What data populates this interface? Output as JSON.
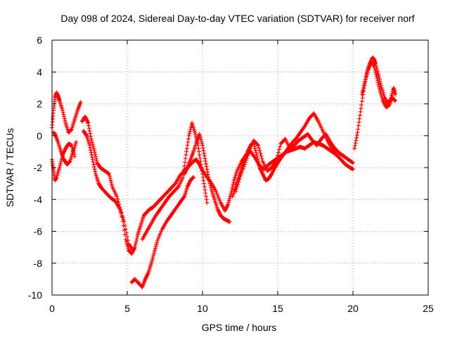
{
  "chart_data": {
    "type": "scatter",
    "title": "Day 098 of 2024, Sidereal Day-to-day VTEC variation (SDTVAR) for receiver norf",
    "xlabel": "GPS time / hours",
    "ylabel": "SDTVAR / TECUs",
    "xlim": [
      0,
      25
    ],
    "ylim": [
      -10,
      6
    ],
    "xticks": [
      "0",
      "5",
      "10",
      "15",
      "20",
      "25"
    ],
    "yticks": [
      "-10",
      "-8",
      "-6",
      "-4",
      "-2",
      "0",
      "2",
      "4",
      "6"
    ],
    "grid": true,
    "marker": "plus",
    "color": "#ff0000",
    "series": [
      {
        "x": [
          0.0,
          0.1,
          0.2,
          0.3,
          0.4,
          0.5,
          0.7,
          0.9,
          1.1,
          1.3,
          1.5,
          1.7,
          1.9
        ],
        "y": [
          0.5,
          1.6,
          2.4,
          2.7,
          2.5,
          2.2,
          1.6,
          0.8,
          0.2,
          0.4,
          1.0,
          1.6,
          2.1
        ]
      },
      {
        "x": [
          0.0,
          0.1,
          0.2,
          0.3,
          0.5,
          0.7,
          0.9,
          1.1,
          1.3,
          1.5
        ],
        "y": [
          -1.5,
          -2.2,
          -2.8,
          -2.6,
          -2.0,
          -1.2,
          -0.8,
          -0.5,
          -0.6,
          -1.3
        ]
      },
      {
        "x": [
          0.1,
          0.2,
          0.4,
          0.6,
          0.8,
          1.0,
          1.2,
          1.4,
          1.6
        ],
        "y": [
          0.2,
          0.1,
          -0.4,
          -1.0,
          -1.5,
          -1.8,
          -1.6,
          -1.0,
          -0.4
        ]
      },
      {
        "x": [
          2.0,
          2.2,
          2.4,
          2.6,
          2.8,
          3.0,
          3.2,
          3.5,
          3.8,
          4.0,
          4.3,
          4.6,
          4.9,
          5.1,
          5.3,
          5.5,
          5.7,
          5.9,
          6.1,
          6.3,
          6.5,
          6.7,
          6.9,
          7.1,
          7.3,
          7.6,
          7.9,
          8.2,
          8.5,
          8.8,
          9.0,
          9.2,
          9.4,
          9.6,
          9.8,
          10.0,
          10.3,
          10.6,
          10.9,
          11.2,
          11.5,
          11.7,
          11.9,
          12.1,
          12.3,
          12.6,
          12.9,
          13.2,
          13.5,
          13.8,
          14.1,
          14.4,
          14.7,
          15.0,
          15.3,
          15.6,
          15.9,
          16.2,
          16.5,
          16.8,
          17.1,
          17.4,
          17.7,
          18.0,
          18.3,
          18.6,
          18.9,
          19.2,
          19.5,
          19.8,
          20.0
        ],
        "y": [
          0.9,
          1.2,
          0.8,
          -0.2,
          -0.9,
          -1.7,
          -2.0,
          -2.2,
          -2.4,
          -3.2,
          -3.8,
          -4.8,
          -6.5,
          -7.2,
          -7.4,
          -7.0,
          -6.2,
          -5.6,
          -5.0,
          -4.8,
          -4.6,
          -4.5,
          -4.3,
          -4.1,
          -3.9,
          -3.6,
          -3.3,
          -3.0,
          -2.5,
          -2.2,
          -2.0,
          -1.8,
          -1.6,
          -1.5,
          -1.8,
          -2.2,
          -2.6,
          -3.0,
          -3.5,
          -4.2,
          -4.7,
          -4.3,
          -3.6,
          -2.8,
          -2.2,
          -1.6,
          -1.2,
          -1.0,
          -1.4,
          -1.9,
          -2.1,
          -1.8,
          -1.6,
          -1.4,
          -1.2,
          -1.0,
          -0.9,
          -0.8,
          -0.7,
          -0.8,
          -0.6,
          -0.4,
          -0.5,
          -0.6,
          -0.8,
          -1.0,
          -1.2,
          -1.5,
          -1.8,
          -2.0,
          -2.1
        ]
      },
      {
        "x": [
          2.1,
          2.3,
          2.5,
          2.7,
          2.9,
          3.1,
          3.3,
          3.6,
          3.9,
          4.2,
          4.5,
          4.8,
          5.1,
          5.4
        ],
        "y": [
          0.3,
          0.0,
          -0.6,
          -1.5,
          -2.4,
          -3.0,
          -3.3,
          -3.6,
          -3.9,
          -4.1,
          -4.6,
          -5.4,
          -6.8,
          -7.2
        ]
      },
      {
        "x": [
          5.3,
          5.5,
          5.8,
          6.0,
          6.2,
          6.4,
          6.6,
          6.8,
          7.0,
          7.3,
          7.6,
          7.9,
          8.2,
          8.5,
          8.8,
          9.0,
          9.2,
          9.4
        ],
        "y": [
          -9.2,
          -9.0,
          -9.3,
          -9.5,
          -9.0,
          -8.6,
          -8.0,
          -7.3,
          -6.6,
          -5.9,
          -5.4,
          -5.0,
          -4.6,
          -4.2,
          -3.8,
          -3.2,
          -2.8,
          -2.6
        ]
      },
      {
        "x": [
          6.0,
          6.3,
          6.6,
          6.9,
          7.2,
          7.5,
          7.8,
          8.1,
          8.4,
          8.7,
          8.9,
          9.1,
          9.3,
          9.5,
          9.7,
          9.9,
          10.1,
          10.3
        ],
        "y": [
          -6.5,
          -6.0,
          -5.5,
          -5.0,
          -4.6,
          -4.2,
          -3.8,
          -3.5,
          -3.2,
          -2.6,
          -1.2,
          0.0,
          0.8,
          0.2,
          -0.6,
          -1.8,
          -3.0,
          -4.2
        ]
      },
      {
        "x": [
          8.8,
          9.0,
          9.2,
          9.4,
          9.6,
          9.8,
          10.0,
          10.2,
          10.4,
          10.6,
          10.8,
          11.0,
          11.2,
          11.4,
          11.6,
          11.8
        ],
        "y": [
          -2.4,
          -2.0,
          -1.5,
          -1.0,
          -0.4,
          0.1,
          -0.6,
          -1.6,
          -2.6,
          -3.4,
          -4.0,
          -4.6,
          -5.0,
          -5.2,
          -5.3,
          -5.4
        ]
      },
      {
        "x": [
          12.0,
          12.2,
          12.4,
          12.6,
          12.8,
          13.0,
          13.2,
          13.4,
          13.6,
          13.8,
          14.0,
          14.2,
          14.4,
          14.6,
          14.8,
          15.0,
          15.3,
          15.6,
          15.9,
          16.2,
          16.5,
          16.8,
          17.1,
          17.4,
          17.7,
          18.0,
          18.3,
          18.6,
          18.9
        ],
        "y": [
          -3.8,
          -3.2,
          -2.6,
          -2.0,
          -1.5,
          -1.0,
          -0.6,
          -0.4,
          -1.2,
          -2.0,
          -2.4,
          -2.8,
          -2.7,
          -2.4,
          -2.0,
          -1.7,
          -1.3,
          -0.9,
          -0.5,
          -0.2,
          0.2,
          0.6,
          1.1,
          1.4,
          0.9,
          0.3,
          -0.3,
          -0.8,
          -1.1
        ]
      },
      {
        "x": [
          12.2,
          12.5,
          12.8,
          13.1,
          13.4,
          13.7,
          14.0,
          14.3,
          14.6,
          14.9,
          15.2,
          15.5,
          15.8,
          16.1,
          16.4,
          16.7,
          17.0,
          17.3,
          17.6,
          17.9,
          18.2,
          18.5,
          18.8,
          19.1,
          19.4,
          19.7,
          20.0
        ],
        "y": [
          -3.5,
          -2.6,
          -1.8,
          -1.0,
          -0.3,
          -0.6,
          -1.6,
          -2.2,
          -2.0,
          -1.6,
          -0.5,
          -0.2,
          -0.8,
          -0.6,
          -0.3,
          -0.1,
          0.1,
          -0.3,
          -0.6,
          -0.2,
          0.1,
          -0.4,
          -0.8,
          -1.1,
          -1.3,
          -1.5,
          -1.7
        ]
      },
      {
        "x": [
          20.1,
          20.3,
          20.5,
          20.7,
          20.9,
          21.1,
          21.3,
          21.4,
          21.5,
          21.7,
          21.9,
          22.1,
          22.3,
          22.5,
          22.7,
          22.8
        ],
        "y": [
          -0.8,
          0.2,
          1.5,
          2.8,
          3.9,
          4.5,
          4.9,
          4.8,
          4.5,
          3.8,
          3.0,
          2.4,
          2.0,
          2.3,
          3.0,
          2.6
        ]
      },
      {
        "x": [
          20.6,
          20.8,
          21.0,
          21.2,
          21.4,
          21.6,
          21.8,
          22.0,
          22.2,
          22.4,
          22.6,
          22.8
        ],
        "y": [
          2.6,
          3.4,
          4.1,
          4.6,
          4.4,
          3.6,
          2.8,
          2.2,
          1.8,
          1.9,
          2.4,
          2.2
        ]
      }
    ]
  }
}
